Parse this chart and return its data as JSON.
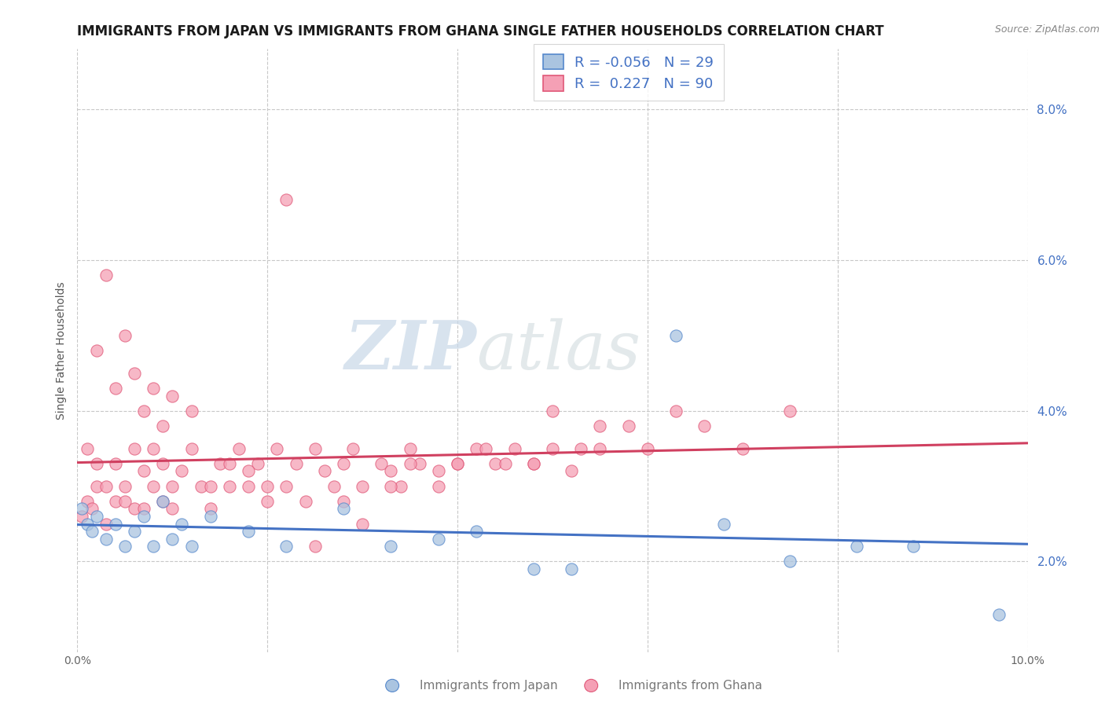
{
  "title": "IMMIGRANTS FROM JAPAN VS IMMIGRANTS FROM GHANA SINGLE FATHER HOUSEHOLDS CORRELATION CHART",
  "source": "Source: ZipAtlas.com",
  "ylabel": "Single Father Households",
  "xlim": [
    0.0,
    0.1
  ],
  "ylim": [
    0.008,
    0.088
  ],
  "xticks": [
    0.0,
    0.1
  ],
  "xtick_labels": [
    "0.0%",
    "10.0%"
  ],
  "yticks": [
    0.02,
    0.04,
    0.06,
    0.08
  ],
  "ytick_labels": [
    "2.0%",
    "4.0%",
    "6.0%",
    "8.0%"
  ],
  "japan_color": "#aac4e0",
  "ghana_color": "#f5a0b5",
  "japan_edge_color": "#5588cc",
  "ghana_edge_color": "#e05878",
  "japan_line_color": "#4472c4",
  "ghana_line_color": "#d04060",
  "legend_japan_R": "-0.056",
  "legend_japan_N": "29",
  "legend_ghana_R": "0.227",
  "legend_ghana_N": "90",
  "japan_x": [
    0.0005,
    0.001,
    0.0015,
    0.002,
    0.003,
    0.004,
    0.005,
    0.006,
    0.007,
    0.008,
    0.009,
    0.01,
    0.011,
    0.012,
    0.014,
    0.018,
    0.022,
    0.028,
    0.033,
    0.038,
    0.042,
    0.048,
    0.052,
    0.063,
    0.068,
    0.075,
    0.082,
    0.088,
    0.097
  ],
  "japan_y": [
    0.027,
    0.025,
    0.024,
    0.026,
    0.023,
    0.025,
    0.022,
    0.024,
    0.026,
    0.022,
    0.028,
    0.023,
    0.025,
    0.022,
    0.026,
    0.024,
    0.022,
    0.027,
    0.022,
    0.023,
    0.024,
    0.019,
    0.019,
    0.05,
    0.025,
    0.02,
    0.022,
    0.022,
    0.013
  ],
  "ghana_x": [
    0.0005,
    0.001,
    0.001,
    0.0015,
    0.002,
    0.002,
    0.003,
    0.003,
    0.004,
    0.004,
    0.005,
    0.005,
    0.006,
    0.006,
    0.007,
    0.007,
    0.008,
    0.008,
    0.009,
    0.009,
    0.01,
    0.01,
    0.011,
    0.012,
    0.013,
    0.014,
    0.015,
    0.016,
    0.017,
    0.018,
    0.019,
    0.02,
    0.021,
    0.022,
    0.023,
    0.024,
    0.025,
    0.026,
    0.027,
    0.028,
    0.029,
    0.03,
    0.032,
    0.033,
    0.034,
    0.035,
    0.036,
    0.038,
    0.04,
    0.042,
    0.044,
    0.046,
    0.048,
    0.05,
    0.052,
    0.055,
    0.002,
    0.003,
    0.004,
    0.005,
    0.006,
    0.007,
    0.008,
    0.009,
    0.01,
    0.012,
    0.014,
    0.016,
    0.018,
    0.02,
    0.022,
    0.025,
    0.028,
    0.03,
    0.033,
    0.035,
    0.038,
    0.04,
    0.043,
    0.045,
    0.048,
    0.05,
    0.053,
    0.055,
    0.058,
    0.06,
    0.063,
    0.066,
    0.07,
    0.075
  ],
  "ghana_y": [
    0.026,
    0.028,
    0.035,
    0.027,
    0.03,
    0.033,
    0.025,
    0.03,
    0.028,
    0.033,
    0.03,
    0.028,
    0.035,
    0.027,
    0.032,
    0.027,
    0.03,
    0.035,
    0.028,
    0.033,
    0.03,
    0.027,
    0.032,
    0.035,
    0.03,
    0.027,
    0.033,
    0.03,
    0.035,
    0.03,
    0.033,
    0.028,
    0.035,
    0.03,
    0.033,
    0.028,
    0.035,
    0.032,
    0.03,
    0.033,
    0.035,
    0.03,
    0.033,
    0.032,
    0.03,
    0.035,
    0.033,
    0.03,
    0.033,
    0.035,
    0.033,
    0.035,
    0.033,
    0.035,
    0.032,
    0.035,
    0.048,
    0.058,
    0.043,
    0.05,
    0.045,
    0.04,
    0.043,
    0.038,
    0.042,
    0.04,
    0.03,
    0.033,
    0.032,
    0.03,
    0.068,
    0.022,
    0.028,
    0.025,
    0.03,
    0.033,
    0.032,
    0.033,
    0.035,
    0.033,
    0.033,
    0.04,
    0.035,
    0.038,
    0.038,
    0.035,
    0.04,
    0.038,
    0.035,
    0.04
  ],
  "watermark_zip": "ZIP",
  "watermark_atlas": "atlas",
  "background_color": "#ffffff",
  "grid_color": "#c8c8c8",
  "title_fontsize": 12,
  "axis_label_fontsize": 10,
  "tick_fontsize": 10,
  "legend_fontsize": 13
}
